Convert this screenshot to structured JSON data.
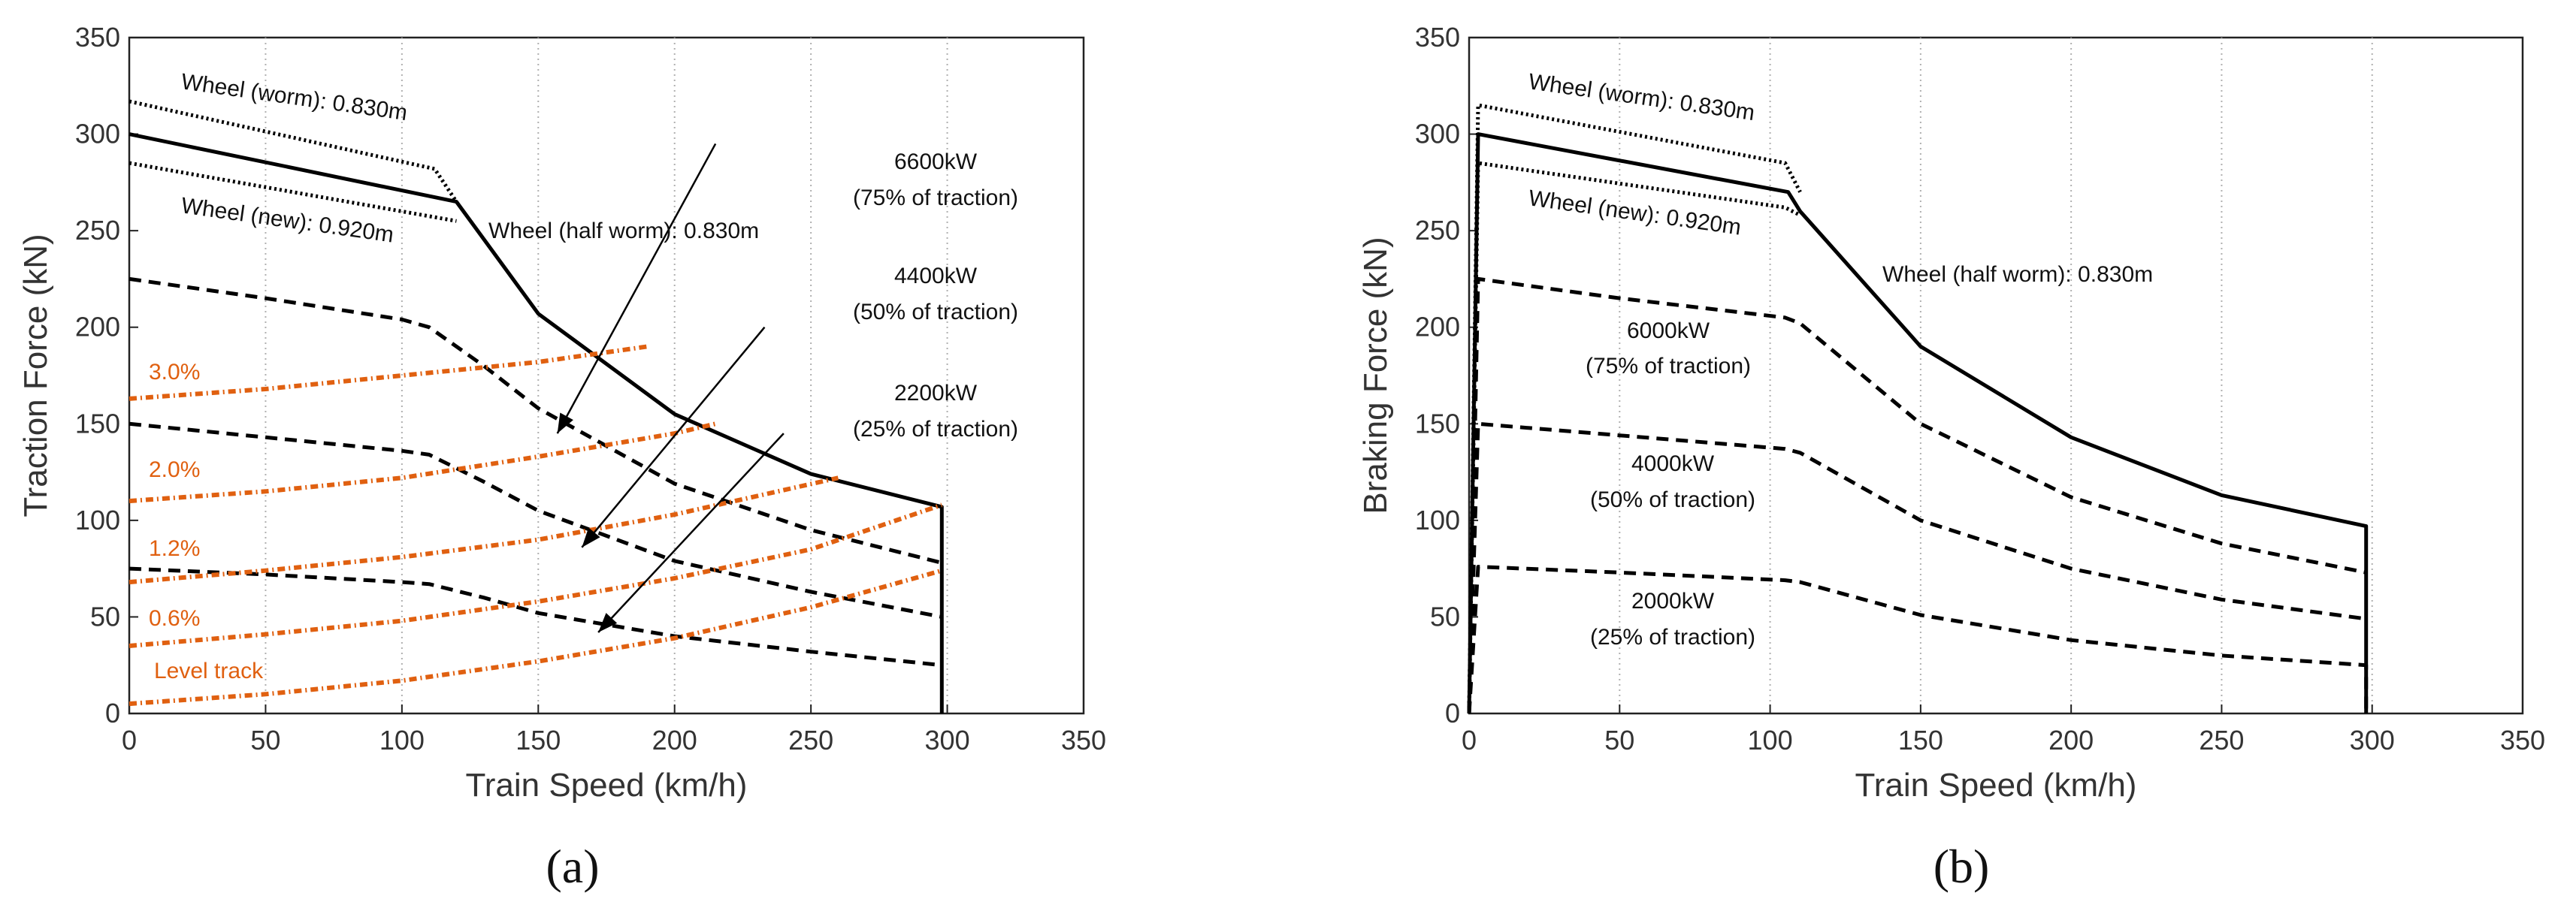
{
  "chart_data": [
    {
      "type": "line",
      "subfigure": "(a)",
      "xlabel": "Train Speed (km/h)",
      "ylabel": "Traction Force (kN)",
      "xlim": [
        0,
        350
      ],
      "ylim": [
        0,
        350
      ],
      "xticks": [
        0,
        50,
        100,
        150,
        200,
        250,
        300,
        350
      ],
      "yticks": [
        0,
        50,
        100,
        150,
        200,
        250,
        300,
        350
      ],
      "grid": "vertical dotted",
      "series": [
        {
          "name": "Wheel (worm): 0.830m",
          "style": "dotted",
          "x": [
            0,
            112,
            120
          ],
          "y": [
            317,
            282,
            265
          ]
        },
        {
          "name": "Wheel (new): 0.920m",
          "style": "dotted",
          "x": [
            0,
            120
          ],
          "y": [
            285,
            255
          ]
        },
        {
          "name": "Wheel (half worm): 0.830m",
          "style": "solid",
          "x": [
            0,
            120,
            150,
            200,
            250,
            298,
            298
          ],
          "y": [
            300,
            265,
            207,
            155,
            124,
            107,
            0
          ]
        },
        {
          "name": "6600kW (75% of traction)",
          "style": "dashed",
          "x": [
            0,
            50,
            100,
            110,
            130,
            150,
            200,
            250,
            298
          ],
          "y": [
            225,
            215,
            204,
            200,
            180,
            158,
            119,
            95,
            78
          ]
        },
        {
          "name": "4400kW (50% of traction)",
          "style": "dashed",
          "x": [
            0,
            50,
            100,
            110,
            130,
            150,
            200,
            250,
            298
          ],
          "y": [
            150,
            143,
            136,
            134,
            120,
            105,
            79,
            63,
            50
          ]
        },
        {
          "name": "2200kW (25% of traction)",
          "style": "dashed",
          "x": [
            0,
            50,
            100,
            110,
            130,
            150,
            200,
            250,
            298
          ],
          "y": [
            75,
            72,
            68,
            67,
            60,
            52,
            40,
            32,
            25
          ]
        },
        {
          "name": "3.0%",
          "style": "dash-dot",
          "color": "#E06010",
          "x": [
            0,
            50,
            100,
            150,
            190
          ],
          "y": [
            163,
            168,
            175,
            182,
            190
          ]
        },
        {
          "name": "2.0%",
          "style": "dash-dot",
          "color": "#E06010",
          "x": [
            0,
            50,
            100,
            150,
            200,
            215
          ],
          "y": [
            110,
            115,
            122,
            133,
            145,
            150
          ]
        },
        {
          "name": "1.2%",
          "style": "dash-dot",
          "color": "#E06010",
          "x": [
            0,
            50,
            100,
            150,
            200,
            260
          ],
          "y": [
            68,
            74,
            81,
            90,
            103,
            122
          ]
        },
        {
          "name": "0.6%",
          "style": "dash-dot",
          "color": "#E06010",
          "x": [
            0,
            50,
            100,
            150,
            200,
            250,
            298
          ],
          "y": [
            35,
            41,
            48,
            58,
            70,
            85,
            108
          ]
        },
        {
          "name": "Level track",
          "style": "dash-dot",
          "color": "#E06010",
          "x": [
            0,
            50,
            100,
            150,
            200,
            250,
            298
          ],
          "y": [
            5,
            10,
            17,
            27,
            39,
            55,
            74
          ]
        }
      ],
      "labels": {
        "wheel_worm": "Wheel (worm): 0.830m",
        "wheel_new": "Wheel (new): 0.920m",
        "wheel_half": "Wheel (half worm): 0.830m",
        "p6600": "6600kW",
        "p6600_sub": "(75% of traction)",
        "p4400": "4400kW",
        "p4400_sub": "(50% of traction)",
        "p2200": "2200kW",
        "p2200_sub": "(25% of traction)",
        "g30": "3.0%",
        "g20": "2.0%",
        "g12": "1.2%",
        "g06": "0.6%",
        "level": "Level track"
      },
      "arrows": [
        {
          "from": [
            215,
            295
          ],
          "to": [
            157,
            145
          ]
        },
        {
          "from": [
            233,
            200
          ],
          "to": [
            166,
            86
          ]
        },
        {
          "from": [
            240,
            145
          ],
          "to": [
            172,
            42
          ]
        }
      ]
    },
    {
      "type": "line",
      "subfigure": "(b)",
      "xlabel": "Train Speed (km/h)",
      "ylabel": "Braking Force (kN)",
      "xlim": [
        0,
        350
      ],
      "ylim": [
        0,
        350
      ],
      "xticks": [
        0,
        50,
        100,
        150,
        200,
        250,
        300,
        350
      ],
      "yticks": [
        0,
        50,
        100,
        150,
        200,
        250,
        300,
        350
      ],
      "grid": "vertical dotted",
      "series": [
        {
          "name": "Wheel (worm): 0.830m",
          "style": "dotted",
          "x": [
            0,
            3,
            105,
            110
          ],
          "y": [
            0,
            315,
            285,
            270
          ]
        },
        {
          "name": "Wheel (new): 0.920m",
          "style": "dotted",
          "x": [
            0,
            3,
            105,
            110
          ],
          "y": [
            0,
            285,
            262,
            258
          ]
        },
        {
          "name": "Wheel (half worm): 0.830m",
          "style": "solid",
          "x": [
            0,
            3,
            106,
            110,
            150,
            200,
            250,
            298,
            298
          ],
          "y": [
            0,
            300,
            270,
            260,
            190,
            143,
            113,
            97,
            0
          ]
        },
        {
          "name": "6000kW (75% of traction)",
          "style": "dashed",
          "x": [
            0,
            3,
            50,
            105,
            110,
            150,
            200,
            250,
            298
          ],
          "y": [
            0,
            225,
            215,
            205,
            202,
            150,
            112,
            88,
            73
          ]
        },
        {
          "name": "4000kW (50% of traction)",
          "style": "dashed",
          "x": [
            0,
            3,
            50,
            105,
            110,
            150,
            200,
            250,
            298
          ],
          "y": [
            0,
            150,
            144,
            137,
            135,
            100,
            75,
            59,
            49
          ]
        },
        {
          "name": "2000kW (25% of traction)",
          "style": "dashed",
          "x": [
            0,
            3,
            50,
            105,
            110,
            150,
            200,
            250,
            298,
            298
          ],
          "y": [
            0,
            76,
            73,
            69,
            68,
            51,
            38,
            30,
            25,
            0
          ]
        }
      ],
      "labels": {
        "wheel_worm": "Wheel (worm): 0.830m",
        "wheel_new": "Wheel (new): 0.920m",
        "wheel_half": "Wheel (half worm): 0.830m",
        "p6000": "6000kW",
        "p6000_sub": "(75% of traction)",
        "p4000": "4000kW",
        "p4000_sub": "(50% of traction)",
        "p2000": "2000kW",
        "p2000_sub": "(25% of traction)"
      }
    }
  ]
}
